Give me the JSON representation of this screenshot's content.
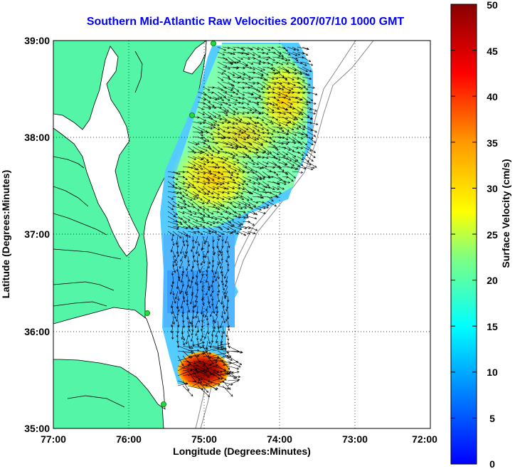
{
  "title": "Southern Mid-Atlantic Raw Velocities 2007/07/10 1000 GMT",
  "x_axis": {
    "label": "Longitude (Degrees:Minutes)",
    "ticks": [
      "77:00",
      "76:00",
      "75:00",
      "74:00",
      "73:00",
      "72:00"
    ]
  },
  "y_axis": {
    "label": "Latitude (Degrees:Minutes)",
    "ticks": [
      "39:00",
      "38:00",
      "37:00",
      "36:00",
      "35:00"
    ]
  },
  "colorbar": {
    "label": "Surface Velocity (cm/s)",
    "ticks": [
      "50",
      "45",
      "40",
      "35",
      "30",
      "25",
      "20",
      "15",
      "10",
      "5",
      "0"
    ],
    "min": 0,
    "max": 50
  },
  "colors": {
    "land": "#55f5a8",
    "water": "#ffffff",
    "title": "#0000ff",
    "grid": "#000000",
    "vectors": "#000000",
    "stations": "#22dd33"
  },
  "map": {
    "lon_range": [
      -77,
      -72
    ],
    "lat_range": [
      35,
      39
    ],
    "grid": "dotted"
  }
}
